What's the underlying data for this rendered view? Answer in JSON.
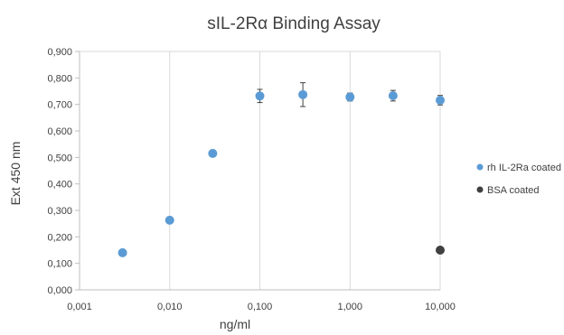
{
  "chart_data": {
    "type": "scatter",
    "title": "sIL-2Rα Binding Assay",
    "xlabel": "ng/ml",
    "ylabel": "Ext 450 nm",
    "x_scale": "log",
    "xlim": [
      0.001,
      10
    ],
    "ylim": [
      0,
      0.9
    ],
    "x_ticks": [
      0.001,
      0.01,
      0.1,
      1,
      10
    ],
    "x_tick_labels": [
      "0,001",
      "0,010",
      "0,100",
      "1,000",
      "10,000"
    ],
    "y_ticks": [
      0,
      0.1,
      0.2,
      0.3,
      0.4,
      0.5,
      0.6,
      0.7,
      0.8,
      0.9
    ],
    "y_tick_labels": [
      "0,000",
      "0,100",
      "0,200",
      "0,300",
      "0,400",
      "0,500",
      "0,600",
      "0,700",
      "0,800",
      "0,900"
    ],
    "grid": "vertical",
    "legend_position": "right",
    "series": [
      {
        "name": "rh IL-2Ra coated",
        "color": "#5b9bd5",
        "x": [
          0.003,
          0.01,
          0.03,
          0.1,
          0.3,
          1,
          3,
          10
        ],
        "y": [
          0.14,
          0.263,
          0.515,
          0.732,
          0.737,
          0.728,
          0.733,
          0.716
        ],
        "error": [
          0,
          0,
          0,
          0.025,
          0.045,
          0.015,
          0.02,
          0.018
        ]
      },
      {
        "name": "BSA coated",
        "color": "#404040",
        "x": [
          10
        ],
        "y": [
          0.15
        ],
        "error": [
          0
        ]
      }
    ]
  }
}
